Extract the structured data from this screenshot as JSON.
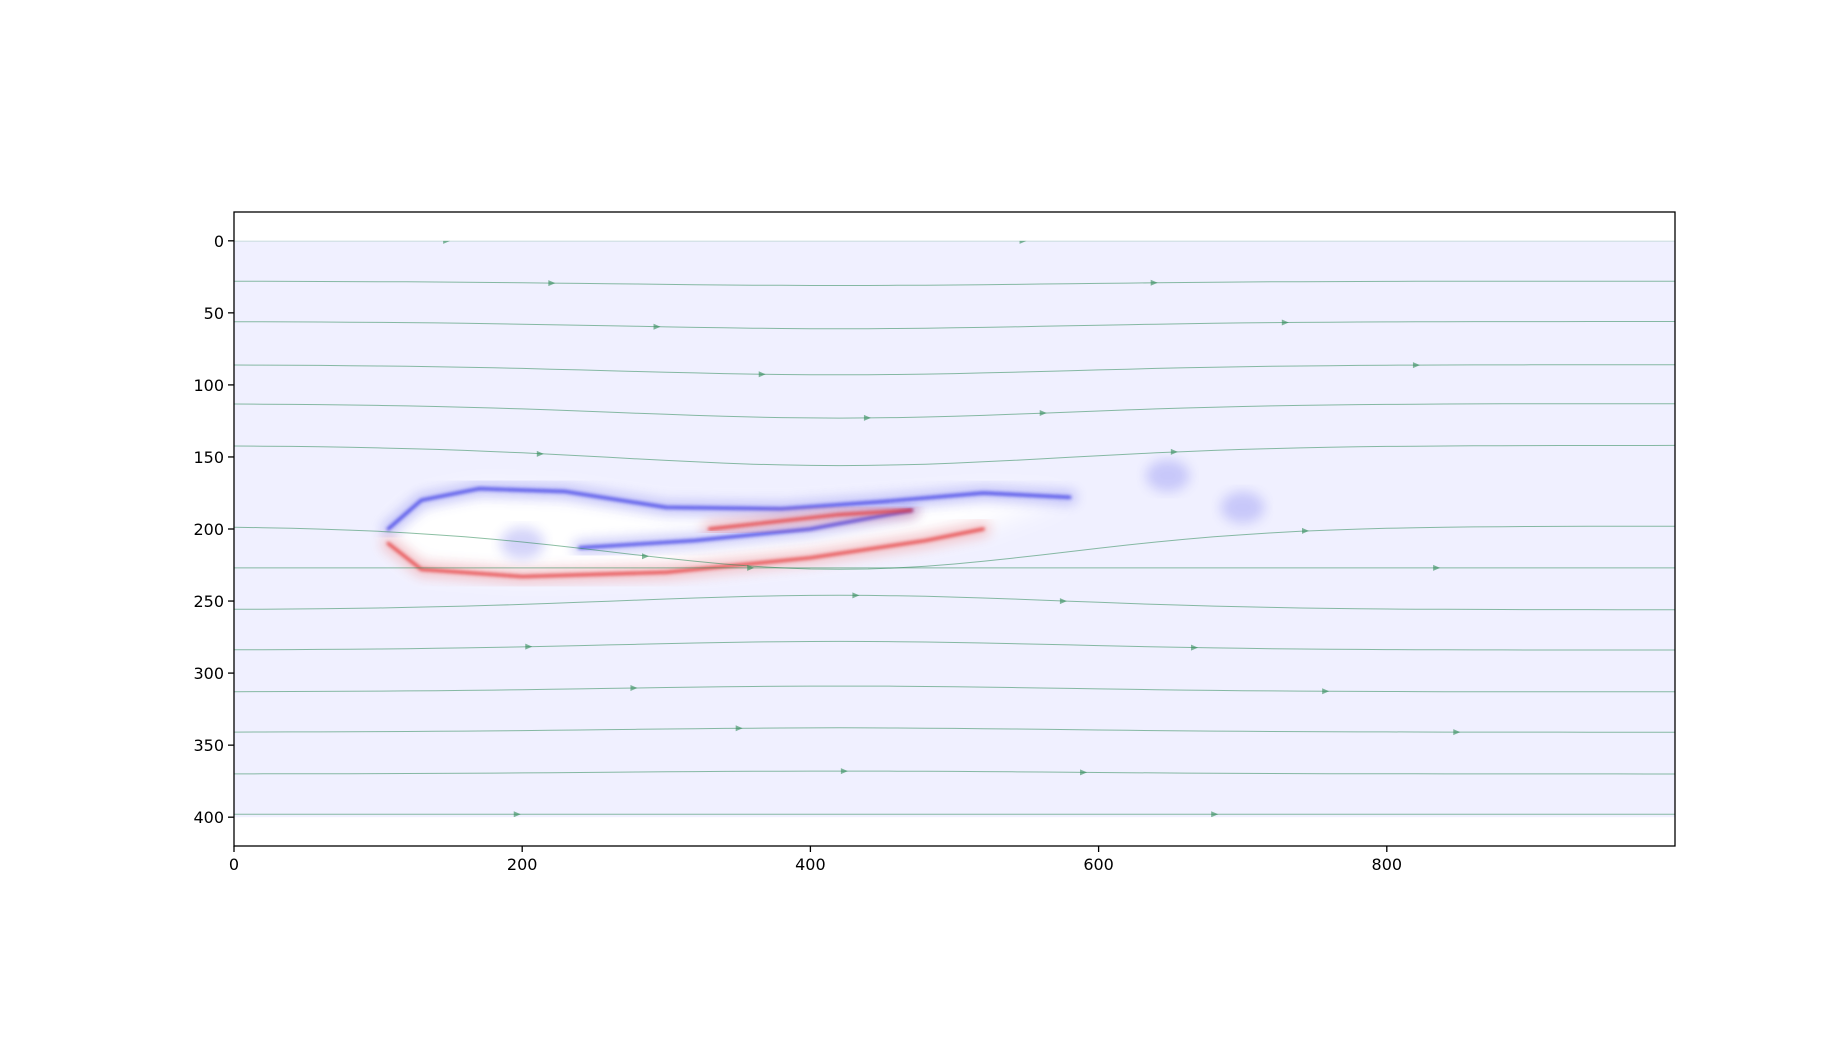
{
  "chart_data": {
    "type": "heatmap",
    "title": "",
    "xlabel": "",
    "ylabel": "",
    "xlim": [
      0,
      1000
    ],
    "ylim": [
      420,
      -20
    ],
    "field_extent": {
      "x": [
        0,
        1000
      ],
      "y": [
        0,
        400
      ]
    },
    "y_inverted": true,
    "grid": false,
    "legend": "none",
    "x_ticks": [
      0,
      200,
      400,
      600,
      800
    ],
    "y_ticks": [
      0,
      50,
      100,
      150,
      200,
      250,
      300,
      350,
      400
    ],
    "colormap": "bwr",
    "colors": {
      "background_field": "#f0f0ff",
      "negative": "#3a3ae6",
      "positive": "#e63a3a",
      "neutral": "#ffffff",
      "streamline": "#2e8b57"
    },
    "vorticity_features": [
      {
        "name": "upper shear layer",
        "sign": "negative",
        "points": [
          [
            107,
            200
          ],
          [
            130,
            180
          ],
          [
            170,
            172
          ],
          [
            230,
            174
          ],
          [
            300,
            185
          ],
          [
            380,
            186
          ],
          [
            450,
            181
          ],
          [
            520,
            175
          ],
          [
            580,
            178
          ]
        ]
      },
      {
        "name": "lower shear layer",
        "sign": "positive",
        "points": [
          [
            107,
            210
          ],
          [
            130,
            228
          ],
          [
            200,
            233
          ],
          [
            300,
            230
          ],
          [
            400,
            220
          ],
          [
            480,
            208
          ],
          [
            520,
            200
          ]
        ]
      },
      {
        "name": "inner blue streak",
        "sign": "negative",
        "points": [
          [
            240,
            213
          ],
          [
            320,
            208
          ],
          [
            400,
            200
          ],
          [
            470,
            187
          ]
        ]
      },
      {
        "name": "inner red streak",
        "sign": "positive",
        "points": [
          [
            330,
            200
          ],
          [
            420,
            190
          ],
          [
            470,
            187
          ]
        ]
      },
      {
        "name": "shed vortex a",
        "sign": "negative",
        "center": [
          648,
          163
        ]
      },
      {
        "name": "shed vortex b",
        "sign": "negative",
        "center": [
          700,
          185
        ]
      },
      {
        "name": "recirculation",
        "sign": "negative",
        "center": [
          200,
          210
        ]
      }
    ],
    "streamlines": [
      {
        "y0": 0,
        "dip": 0
      },
      {
        "y0": 28,
        "dip": 3
      },
      {
        "y0": 56,
        "dip": 5
      },
      {
        "y0": 86,
        "dip": 7
      },
      {
        "y0": 113,
        "dip": 10
      },
      {
        "y0": 142,
        "dip": 14
      },
      {
        "y0": 198,
        "dip": 30
      },
      {
        "y0": 227,
        "dip": 0
      },
      {
        "y0": 256,
        "dip": -10
      },
      {
        "y0": 284,
        "dip": -6
      },
      {
        "y0": 313,
        "dip": -4
      },
      {
        "y0": 341,
        "dip": -3
      },
      {
        "y0": 370,
        "dip": -2
      },
      {
        "y0": 398,
        "dip": 0
      }
    ]
  }
}
